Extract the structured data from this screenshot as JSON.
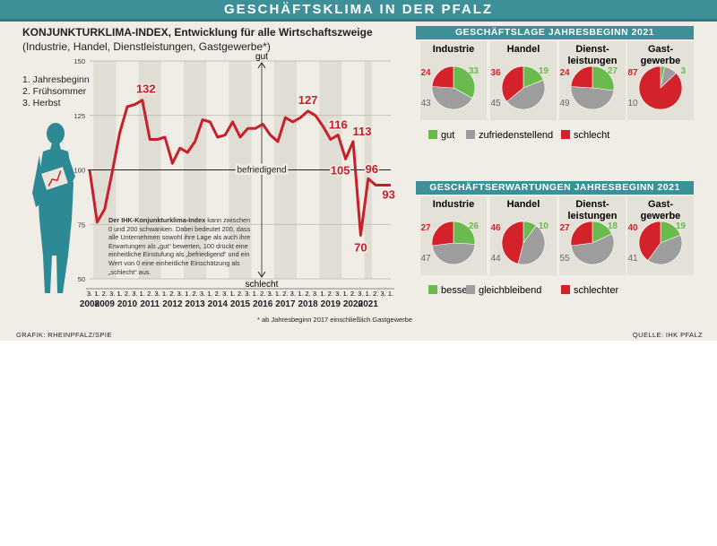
{
  "banner_title": "GESCHÄFTSKLIMA IN DER PFALZ",
  "footer": {
    "left": "GRAFIK: RHEINPFALZ/SPIE",
    "right": "QUELLE: IHK PFALZ"
  },
  "colors": {
    "accent": "#3d8f98",
    "line": "#c8202b",
    "gut": "#6abb4d",
    "mittel": "#9d9d9d",
    "schlecht": "#d4222b"
  },
  "chart_data": [
    {
      "type": "line",
      "title": "KONJUNKTURKLIMA-INDEX,",
      "title_rest": "Entwicklung für alle Wirtschaftszweige",
      "subtitle": "(Industrie, Handel, Dienstleistungen, Gastgewerbe*)",
      "survey_legend": [
        "1. Jahresbeginn",
        "2. Frühsommer",
        "3. Herbst"
      ],
      "ylim": [
        50,
        150
      ],
      "yticks": [
        50,
        75,
        100,
        125,
        150
      ],
      "grid": true,
      "reference_line": {
        "value": 100,
        "label": "befriedigend"
      },
      "axis_top_label": "gut",
      "axis_bottom_label": "schlecht",
      "years": [
        "2008",
        "2009",
        "2010",
        "2011",
        "2012",
        "2013",
        "2014",
        "2015",
        "2016",
        "2017",
        "2018",
        "2019",
        "2020",
        "2021"
      ],
      "x": [
        "3.",
        "1.",
        "2.",
        "3.",
        "1.",
        "2.",
        "3.",
        "1.",
        "2.",
        "3.",
        "1.",
        "2.",
        "3.",
        "1.",
        "2.",
        "3.",
        "1.",
        "2.",
        "3.",
        "1.",
        "2.",
        "3.",
        "1.",
        "2.",
        "3.",
        "1.",
        "2.",
        "3.",
        "1.",
        "2.",
        "3.",
        "1.",
        "2.",
        "3.",
        "1.",
        "2.",
        "3.",
        "1.",
        "2.",
        "3.",
        "1."
      ],
      "series": [
        {
          "values": [
            100,
            76,
            82,
            99,
            117,
            129,
            130,
            132,
            114,
            114,
            115,
            103,
            110,
            108,
            113,
            123,
            122,
            115,
            116,
            122,
            115,
            119,
            119,
            121,
            116,
            113,
            124,
            122,
            124,
            127,
            125,
            120,
            114,
            116,
            105,
            113,
            70,
            96,
            93,
            93,
            93
          ]
        }
      ],
      "value_labels": [
        "132",
        "127",
        "116",
        "105",
        "113",
        "70",
        "96",
        "93"
      ],
      "note_bold": "Der IHK-Konjunkturklima-Index",
      "note_text": "kann zwischen 0 und 200 schwanken. Dabei bedeutet 200, dass alle Unternehmen sowohl ihre Lage als auch ihre Erwartungen als „gut“ bewerten, 100 drückt eine einheitliche Einstufung als „befriedigend“ und ein Wert von 0 eine einheitliche Einschätzung als „schlecht“ aus.",
      "footnote": "* ab Jahresbeginn 2017 einschließlich Gastgewerbe"
    },
    {
      "type": "pie",
      "title": "GESCHÄFTSLAGE JAHRESBEGINN 2021",
      "categories": [
        "Industrie",
        "Handel",
        "Dienst-\nleistungen",
        "Gast-\ngewerbe"
      ],
      "series": [
        {
          "name": "gut",
          "values": [
            33,
            19,
            27,
            3
          ]
        },
        {
          "name": "zufriedenstellend",
          "values": [
            43,
            45,
            49,
            10
          ]
        },
        {
          "name": "schlecht",
          "values": [
            24,
            36,
            24,
            87
          ]
        }
      ]
    },
    {
      "type": "pie",
      "title": "GESCHÄFTSERWARTUNGEN JAHRESBEGINN 2021",
      "categories": [
        "Industrie",
        "Handel",
        "Dienst-\nleistungen",
        "Gast-\ngewerbe"
      ],
      "series": [
        {
          "name": "besser",
          "values": [
            26,
            10,
            18,
            19
          ]
        },
        {
          "name": "gleichbleibend",
          "values": [
            47,
            44,
            55,
            41
          ]
        },
        {
          "name": "schlechter",
          "values": [
            27,
            46,
            27,
            40
          ]
        }
      ]
    }
  ]
}
